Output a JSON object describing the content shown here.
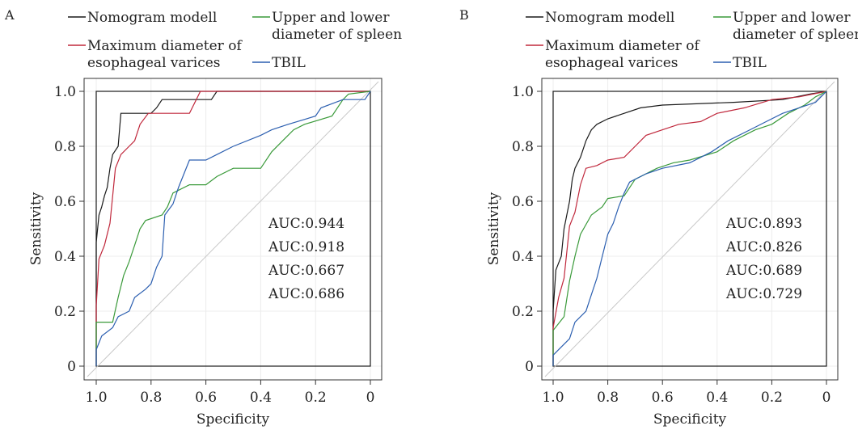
{
  "chart_data": [
    {
      "type": "line",
      "panel_label": "A",
      "xlabel": "Specificity",
      "ylabel": "Sensitivity",
      "xlim": [
        1.0,
        0.0
      ],
      "ylim": [
        0.0,
        1.0
      ],
      "x_ticks": [
        "1.0",
        "0.8",
        "0.6",
        "0.4",
        "0.2",
        "0"
      ],
      "y_ticks": [
        "0",
        "0.2",
        "0.4",
        "0.6",
        "0.8",
        "1.0"
      ],
      "grid": true,
      "reference_line": "diagonal",
      "legend": [
        {
          "label": "Nomogram modell",
          "color": "#1a1a1a"
        },
        {
          "label": "Upper and lower diameter of spleen",
          "color": "#3a9a3a"
        },
        {
          "label": "Maximum diameter of esophageal varices",
          "color": "#c0283c"
        },
        {
          "label": "TBIL",
          "color": "#2c5fb0"
        }
      ],
      "auc_labels": [
        "AUC:0.944",
        "AUC:0.918",
        "AUC:0.667",
        "AUC:0.686"
      ],
      "series": [
        {
          "name": "Nomogram modell",
          "color": "#1a1a1a",
          "points": [
            [
              1.0,
              0.0
            ],
            [
              1.0,
              0.45
            ],
            [
              0.99,
              0.55
            ],
            [
              0.98,
              0.58
            ],
            [
              0.97,
              0.62
            ],
            [
              0.96,
              0.65
            ],
            [
              0.95,
              0.72
            ],
            [
              0.94,
              0.77
            ],
            [
              0.92,
              0.8
            ],
            [
              0.91,
              0.92
            ],
            [
              0.8,
              0.92
            ],
            [
              0.78,
              0.94
            ],
            [
              0.76,
              0.97
            ],
            [
              0.58,
              0.97
            ],
            [
              0.56,
              1.0
            ],
            [
              0.0,
              1.0
            ]
          ]
        },
        {
          "name": "Maximum diameter of esophageal varices",
          "color": "#c0283c",
          "points": [
            [
              1.0,
              0.0
            ],
            [
              1.0,
              0.22
            ],
            [
              0.99,
              0.39
            ],
            [
              0.97,
              0.44
            ],
            [
              0.95,
              0.52
            ],
            [
              0.93,
              0.72
            ],
            [
              0.91,
              0.77
            ],
            [
              0.88,
              0.8
            ],
            [
              0.86,
              0.82
            ],
            [
              0.84,
              0.88
            ],
            [
              0.81,
              0.92
            ],
            [
              0.66,
              0.92
            ],
            [
              0.62,
              1.0
            ],
            [
              0.0,
              1.0
            ]
          ]
        },
        {
          "name": "Upper and lower diameter of spleen",
          "color": "#3a9a3a",
          "points": [
            [
              1.0,
              0.0
            ],
            [
              1.0,
              0.16
            ],
            [
              0.94,
              0.16
            ],
            [
              0.92,
              0.25
            ],
            [
              0.9,
              0.33
            ],
            [
              0.88,
              0.38
            ],
            [
              0.86,
              0.44
            ],
            [
              0.84,
              0.5
            ],
            [
              0.82,
              0.53
            ],
            [
              0.76,
              0.55
            ],
            [
              0.74,
              0.58
            ],
            [
              0.72,
              0.63
            ],
            [
              0.66,
              0.66
            ],
            [
              0.6,
              0.66
            ],
            [
              0.56,
              0.69
            ],
            [
              0.5,
              0.72
            ],
            [
              0.4,
              0.72
            ],
            [
              0.36,
              0.78
            ],
            [
              0.32,
              0.82
            ],
            [
              0.28,
              0.86
            ],
            [
              0.24,
              0.88
            ],
            [
              0.14,
              0.91
            ],
            [
              0.1,
              0.97
            ],
            [
              0.08,
              0.99
            ],
            [
              0.0,
              1.0
            ]
          ]
        },
        {
          "name": "TBIL",
          "color": "#2c5fb0",
          "points": [
            [
              1.0,
              0.0
            ],
            [
              1.0,
              0.06
            ],
            [
              0.98,
              0.11
            ],
            [
              0.94,
              0.14
            ],
            [
              0.92,
              0.18
            ],
            [
              0.88,
              0.2
            ],
            [
              0.86,
              0.25
            ],
            [
              0.82,
              0.28
            ],
            [
              0.8,
              0.3
            ],
            [
              0.78,
              0.36
            ],
            [
              0.76,
              0.4
            ],
            [
              0.75,
              0.55
            ],
            [
              0.72,
              0.59
            ],
            [
              0.7,
              0.65
            ],
            [
              0.68,
              0.7
            ],
            [
              0.66,
              0.75
            ],
            [
              0.6,
              0.75
            ],
            [
              0.56,
              0.77
            ],
            [
              0.5,
              0.8
            ],
            [
              0.4,
              0.84
            ],
            [
              0.36,
              0.86
            ],
            [
              0.3,
              0.88
            ],
            [
              0.2,
              0.91
            ],
            [
              0.18,
              0.94
            ],
            [
              0.1,
              0.97
            ],
            [
              0.02,
              0.97
            ],
            [
              0.0,
              1.0
            ]
          ]
        }
      ]
    },
    {
      "type": "line",
      "panel_label": "B",
      "xlabel": "Specificity",
      "ylabel": "Sensitivity",
      "xlim": [
        1.0,
        0.0
      ],
      "ylim": [
        0.0,
        1.0
      ],
      "x_ticks": [
        "1.0",
        "0.8",
        "0.6",
        "0.4",
        "0.2",
        "0"
      ],
      "y_ticks": [
        "0",
        "0.2",
        "0.4",
        "0.6",
        "0.8",
        "1.0"
      ],
      "grid": true,
      "reference_line": "diagonal",
      "legend": [
        {
          "label": "Nomogram modell",
          "color": "#1a1a1a"
        },
        {
          "label": "Upper and lower diameter of spleen",
          "color": "#3a9a3a"
        },
        {
          "label": "Maximum diameter of esophageal varices",
          "color": "#c0283c"
        },
        {
          "label": "TBIL",
          "color": "#2c5fb0"
        }
      ],
      "auc_labels": [
        "AUC:0.893",
        "AUC:0.826",
        "AUC:0.689",
        "AUC:0.729"
      ],
      "series": [
        {
          "name": "Nomogram modell",
          "color": "#1a1a1a",
          "points": [
            [
              1.0,
              0.0
            ],
            [
              1.0,
              0.2
            ],
            [
              0.99,
              0.35
            ],
            [
              0.97,
              0.4
            ],
            [
              0.96,
              0.5
            ],
            [
              0.94,
              0.6
            ],
            [
              0.93,
              0.68
            ],
            [
              0.92,
              0.72
            ],
            [
              0.9,
              0.76
            ],
            [
              0.88,
              0.82
            ],
            [
              0.86,
              0.86
            ],
            [
              0.84,
              0.88
            ],
            [
              0.8,
              0.9
            ],
            [
              0.74,
              0.92
            ],
            [
              0.68,
              0.94
            ],
            [
              0.6,
              0.95
            ],
            [
              0.34,
              0.96
            ],
            [
              0.16,
              0.97
            ],
            [
              0.06,
              0.99
            ],
            [
              0.0,
              1.0
            ]
          ]
        },
        {
          "name": "Maximum diameter of esophageal varices",
          "color": "#c0283c",
          "points": [
            [
              1.0,
              0.0
            ],
            [
              1.0,
              0.14
            ],
            [
              0.98,
              0.25
            ],
            [
              0.96,
              0.32
            ],
            [
              0.94,
              0.51
            ],
            [
              0.92,
              0.56
            ],
            [
              0.9,
              0.66
            ],
            [
              0.88,
              0.72
            ],
            [
              0.84,
              0.73
            ],
            [
              0.8,
              0.75
            ],
            [
              0.74,
              0.76
            ],
            [
              0.7,
              0.8
            ],
            [
              0.66,
              0.84
            ],
            [
              0.6,
              0.86
            ],
            [
              0.54,
              0.88
            ],
            [
              0.46,
              0.89
            ],
            [
              0.4,
              0.92
            ],
            [
              0.3,
              0.94
            ],
            [
              0.2,
              0.97
            ],
            [
              0.1,
              0.98
            ],
            [
              0.0,
              1.0
            ]
          ]
        },
        {
          "name": "Upper and lower diameter of spleen",
          "color": "#3a9a3a",
          "points": [
            [
              1.0,
              0.0
            ],
            [
              1.0,
              0.13
            ],
            [
              0.96,
              0.18
            ],
            [
              0.94,
              0.31
            ],
            [
              0.92,
              0.4
            ],
            [
              0.9,
              0.48
            ],
            [
              0.86,
              0.55
            ],
            [
              0.82,
              0.58
            ],
            [
              0.8,
              0.61
            ],
            [
              0.74,
              0.62
            ],
            [
              0.7,
              0.68
            ],
            [
              0.62,
              0.72
            ],
            [
              0.56,
              0.74
            ],
            [
              0.5,
              0.75
            ],
            [
              0.4,
              0.78
            ],
            [
              0.34,
              0.82
            ],
            [
              0.26,
              0.86
            ],
            [
              0.2,
              0.88
            ],
            [
              0.14,
              0.92
            ],
            [
              0.08,
              0.95
            ],
            [
              0.04,
              0.98
            ],
            [
              0.0,
              1.0
            ]
          ]
        },
        {
          "name": "TBIL",
          "color": "#2c5fb0",
          "points": [
            [
              1.0,
              0.0
            ],
            [
              1.0,
              0.04
            ],
            [
              0.98,
              0.06
            ],
            [
              0.94,
              0.1
            ],
            [
              0.92,
              0.16
            ],
            [
              0.88,
              0.2
            ],
            [
              0.86,
              0.26
            ],
            [
              0.84,
              0.32
            ],
            [
              0.82,
              0.4
            ],
            [
              0.8,
              0.48
            ],
            [
              0.78,
              0.52
            ],
            [
              0.76,
              0.58
            ],
            [
              0.74,
              0.63
            ],
            [
              0.72,
              0.67
            ],
            [
              0.66,
              0.7
            ],
            [
              0.6,
              0.72
            ],
            [
              0.5,
              0.74
            ],
            [
              0.42,
              0.78
            ],
            [
              0.36,
              0.82
            ],
            [
              0.28,
              0.86
            ],
            [
              0.22,
              0.89
            ],
            [
              0.16,
              0.92
            ],
            [
              0.1,
              0.94
            ],
            [
              0.04,
              0.96
            ],
            [
              0.0,
              1.0
            ]
          ]
        }
      ]
    }
  ]
}
